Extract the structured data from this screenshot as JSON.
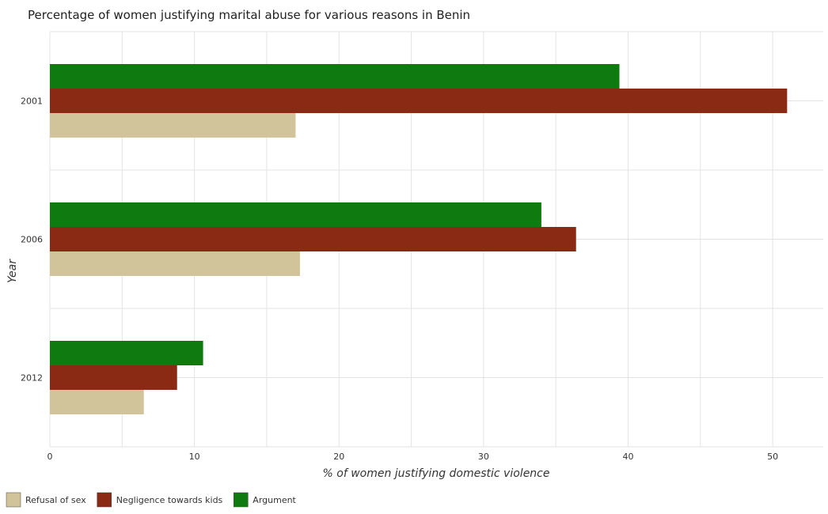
{
  "chart_data": {
    "type": "bar",
    "orientation": "horizontal",
    "title": "Percentage of women justifying marital abuse for various reasons in Benin",
    "xlabel": "% of women justifying domestic violence",
    "ylabel": "Year",
    "categories": [
      "2001",
      "2006",
      "2012"
    ],
    "xlim": [
      0,
      53.5
    ],
    "xticks": [
      0,
      10,
      20,
      30,
      40,
      50
    ],
    "grid": true,
    "legend_position": "bottom-left",
    "series": [
      {
        "name": "Refusal of sex",
        "color": "#d2c49a",
        "values": [
          17.0,
          17.3,
          6.5
        ]
      },
      {
        "name": "Negligence towards kids",
        "color": "#8b2a14",
        "values": [
          51.0,
          36.4,
          8.8
        ]
      },
      {
        "name": "Argument",
        "color": "#0f7a0f",
        "values": [
          39.4,
          34.0,
          10.6
        ]
      }
    ]
  }
}
